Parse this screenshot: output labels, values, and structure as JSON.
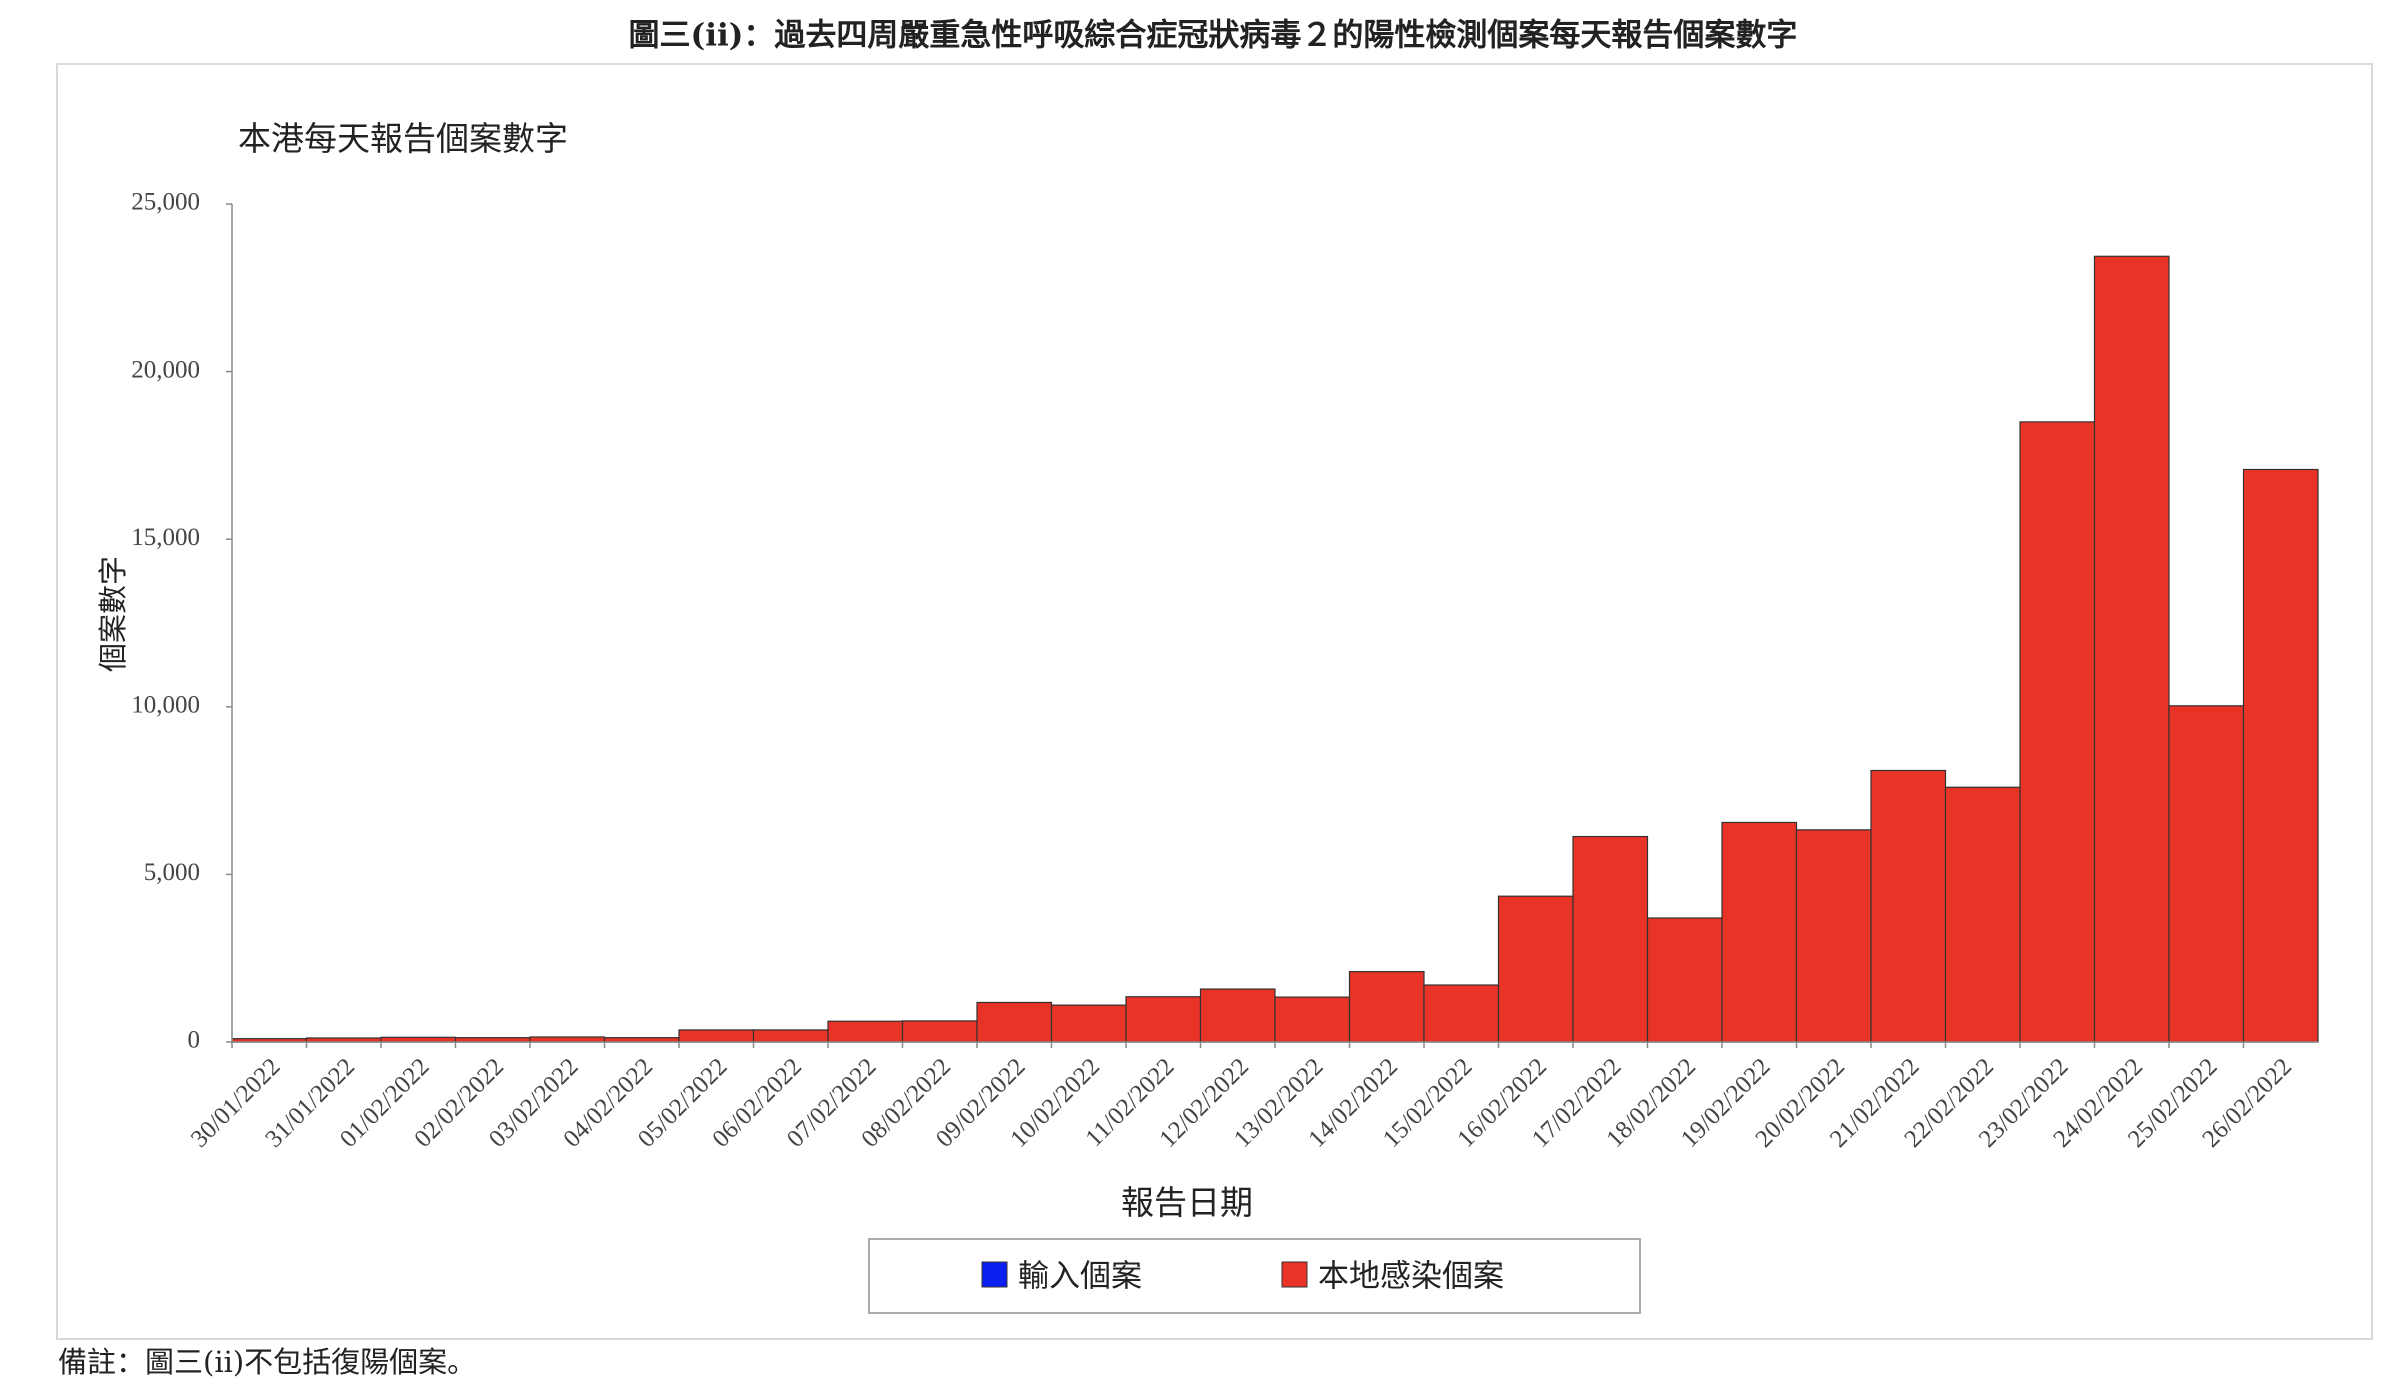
{
  "chart_data": {
    "type": "bar",
    "stacked": true,
    "title": "圖三(ii)：過去四周嚴重急性呼吸綜合症冠狀病毒２的陽性檢測個案每天報告個案數字",
    "subtitle": "本港每天報告個案數字",
    "y_label": "個案數字",
    "x_label": "報告日期",
    "note": "備註：圖三(ii)不包括復陽個案。",
    "categories": [
      "30/01/2022",
      "31/01/2022",
      "01/02/2022",
      "02/02/2022",
      "03/02/2022",
      "04/02/2022",
      "05/02/2022",
      "06/02/2022",
      "07/02/2022",
      "08/02/2022",
      "09/02/2022",
      "10/02/2022",
      "11/02/2022",
      "12/02/2022",
      "13/02/2022",
      "14/02/2022",
      "15/02/2022",
      "16/02/2022",
      "17/02/2022",
      "18/02/2022",
      "19/02/2022",
      "20/02/2022",
      "21/02/2022",
      "22/02/2022",
      "23/02/2022",
      "24/02/2022",
      "25/02/2022",
      "26/02/2022"
    ],
    "series": [
      {
        "name": "輸入個案",
        "color": "#0a1ff0",
        "values": [
          0,
          0,
          0,
          0,
          0,
          0,
          0,
          0,
          0,
          0,
          0,
          0,
          0,
          0,
          0,
          0,
          0,
          0,
          0,
          0,
          0,
          0,
          0,
          0,
          0,
          0,
          0,
          0
        ]
      },
      {
        "name": "本地感染個案",
        "color": "#e83326",
        "values": [
          100,
          120,
          140,
          130,
          150,
          130,
          360,
          360,
          620,
          630,
          1180,
          1100,
          1350,
          1580,
          1340,
          2100,
          1700,
          4350,
          6130,
          3700,
          6550,
          6330,
          8100,
          7600,
          18500,
          23440,
          10030,
          17080
        ]
      }
    ],
    "ylim": [
      0,
      25000
    ],
    "yticks": [
      0,
      {
        "value": 5000,
        "label": "5,000"
      },
      {
        "value": 10000,
        "label": "10,000"
      },
      {
        "value": 15000,
        "label": "15,000"
      },
      {
        "value": 20000,
        "label": "20,000"
      },
      {
        "value": 25000,
        "label": "25,000"
      }
    ]
  }
}
